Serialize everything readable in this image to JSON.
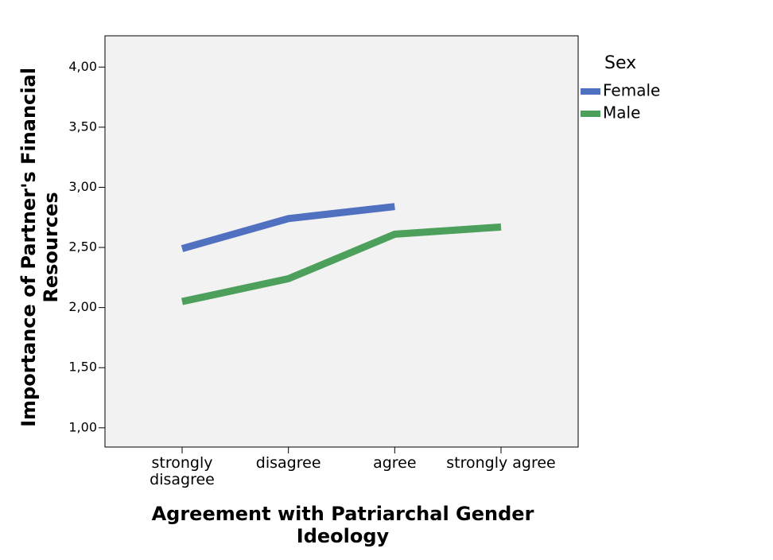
{
  "chart_data": {
    "type": "line",
    "x_label": "Agreement with Patriarchal Gender Ideology",
    "y_label": "Importance of Partner's Financial Resources",
    "legend_title": "Sex",
    "legend": "right",
    "categories": [
      "strongly disagree",
      "disagree",
      "agree",
      "strongly agree"
    ],
    "series": [
      {
        "name": "Female",
        "color": "#5070c0",
        "values": [
          2.49,
          2.74,
          2.84,
          null
        ]
      },
      {
        "name": "Male",
        "color": "#4ca05c",
        "values": [
          2.05,
          2.24,
          2.61,
          2.67
        ]
      }
    ],
    "ylim": [
      0.84,
      4.26
    ],
    "yticks": [
      {
        "value": 1,
        "label": "1,00"
      },
      {
        "value": 1.5,
        "label": "1,50"
      },
      {
        "value": 2,
        "label": "2,00"
      },
      {
        "value": 2.5,
        "label": "2,50"
      },
      {
        "value": 3,
        "label": "3,00"
      },
      {
        "value": 3.5,
        "label": "3,50"
      },
      {
        "value": 4,
        "label": "4,00"
      }
    ]
  }
}
